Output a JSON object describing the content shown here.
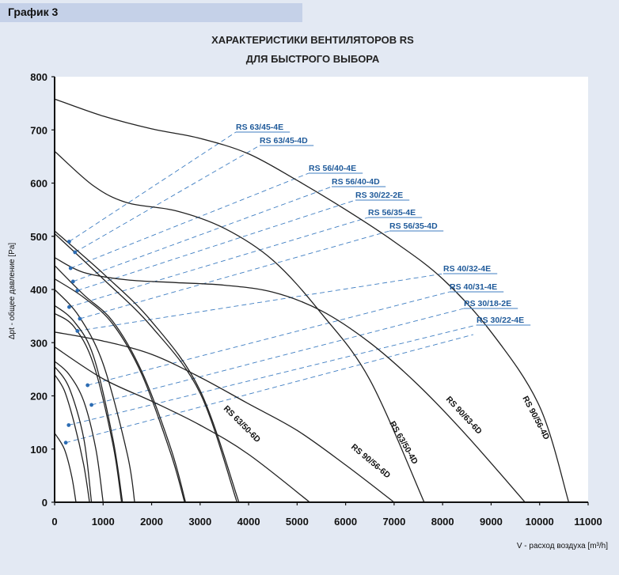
{
  "header": {
    "label": "График 3"
  },
  "chart_data": {
    "type": "line",
    "title": [
      "ХАРАКТЕРИСТИКИ ВЕНТИЛЯТОРОВ RS",
      "ДЛЯ БЫСТРОГО ВЫБОРА"
    ],
    "xlabel": "V - расход воздуха  [m³/h]",
    "ylabel": "Δpt - общее давление [Pa]",
    "xlim": [
      0,
      11000
    ],
    "ylim": [
      0,
      800
    ],
    "xticks": [
      0,
      1000,
      2000,
      3000,
      4000,
      5000,
      6000,
      7000,
      8000,
      9000,
      10000,
      11000
    ],
    "yticks": [
      0,
      100,
      200,
      300,
      400,
      500,
      600,
      700,
      800
    ],
    "series": [
      {
        "name": "RS 90/56-4D",
        "labeled": true,
        "x": [
          0,
          1000,
          2000,
          3000,
          4000,
          5000,
          6000,
          7000,
          8000,
          9000,
          10000,
          10600
        ],
        "y": [
          758,
          726,
          702,
          684,
          655,
          605,
          550,
          490,
          420,
          320,
          180,
          0
        ]
      },
      {
        "name": "RS 90/63-6D",
        "labeled": true,
        "x": [
          0,
          600,
          1500,
          2500,
          3500,
          4500,
          5500,
          6500,
          7500,
          8500,
          9700
        ],
        "y": [
          460,
          432,
          418,
          413,
          408,
          395,
          360,
          300,
          220,
          125,
          0
        ]
      },
      {
        "name": "RS 63/50-4D",
        "labeled": true,
        "x": [
          0,
          800,
          1500,
          2500,
          3500,
          4500,
          5500,
          6500,
          7620
        ],
        "y": [
          660,
          595,
          563,
          548,
          515,
          455,
          355,
          230,
          0
        ]
      },
      {
        "name": "RS 90/56-6D",
        "labeled": true,
        "x": [
          0,
          1000,
          2000,
          3000,
          4000,
          5000,
          6000,
          7000
        ],
        "y": [
          320,
          303,
          278,
          235,
          185,
          135,
          70,
          0
        ]
      },
      {
        "name": "RS 63/50-6D",
        "labeled": true,
        "x": [
          0,
          1000,
          2000,
          3000,
          4000,
          5260
        ],
        "y": [
          292,
          232,
          190,
          145,
          90,
          0
        ]
      },
      {
        "name": "RS 63/45-4E",
        "labeled": false,
        "x": [
          0,
          1000,
          2000,
          3000,
          3800
        ],
        "y": [
          510,
          430,
          340,
          210,
          0
        ]
      },
      {
        "name": "RS 63/45-4D",
        "labeled": false,
        "x": [
          0,
          1000,
          2000,
          3000,
          3760
        ],
        "y": [
          505,
          420,
          330,
          205,
          0
        ]
      },
      {
        "name": "RS 56/40-4E",
        "labeled": false,
        "x": [
          0,
          600,
          1200,
          1800,
          2400,
          2700
        ],
        "y": [
          445,
          390,
          340,
          245,
          100,
          0
        ]
      },
      {
        "name": "RS 56/40-4D",
        "labeled": false,
        "x": [
          0,
          600,
          1200,
          1800,
          2400,
          2680
        ],
        "y": [
          420,
          385,
          335,
          240,
          90,
          0
        ]
      },
      {
        "name": "RS 30/22-2E",
        "labeled": false,
        "x": [
          0,
          500,
          1000,
          1500,
          1650
        ],
        "y": [
          400,
          350,
          260,
          90,
          0
        ]
      },
      {
        "name": "RS 56/35-4E",
        "labeled": false,
        "x": [
          0,
          400,
          800,
          1200,
          1400
        ],
        "y": [
          370,
          340,
          275,
          120,
          0
        ]
      },
      {
        "name": "RS 56/35-4D",
        "labeled": false,
        "x": [
          0,
          400,
          800,
          1200,
          1380
        ],
        "y": [
          355,
          330,
          260,
          110,
          0
        ]
      },
      {
        "name": "RS 40/32-4E",
        "labeled": false,
        "x": [
          0,
          300,
          600,
          850,
          1000
        ],
        "y": [
          265,
          240,
          190,
          100,
          0
        ]
      },
      {
        "name": "RS 40/31-4E",
        "labeled": false,
        "x": [
          0,
          300,
          600,
          760
        ],
        "y": [
          255,
          215,
          120,
          0
        ]
      },
      {
        "name": "RS 30/18-2E",
        "labeled": false,
        "x": [
          0,
          200,
          400,
          600,
          720
        ],
        "y": [
          240,
          210,
          150,
          70,
          0
        ]
      },
      {
        "name": "RS 30/22-4E",
        "labeled": false,
        "x": [
          0,
          200,
          350,
          440
        ],
        "y": [
          130,
          100,
          50,
          0
        ]
      }
    ],
    "selection_lines": [
      {
        "label": "RS 63/45-4E",
        "x": 300,
        "y": 490
      },
      {
        "label": "RS 63/45-4D",
        "x": 420,
        "y": 470
      },
      {
        "label": "RS 56/40-4E",
        "x": 330,
        "y": 440
      },
      {
        "label": "RS 56/40-4D",
        "x": 380,
        "y": 415
      },
      {
        "label": "RS 30/22-2E",
        "x": 470,
        "y": 398
      },
      {
        "label": "RS 56/35-4E",
        "x": 300,
        "y": 367
      },
      {
        "label": "RS 56/35-4D",
        "x": 520,
        "y": 345
      },
      {
        "label": "RS 40/32-4E",
        "x": 470,
        "y": 322
      },
      {
        "label": "RS 40/31-4E",
        "x": 680,
        "y": 220
      },
      {
        "label": "RS 30/18-2E",
        "x": 760,
        "y": 183
      },
      {
        "label": "RS 30/22-4E",
        "x": 290,
        "y": 145
      },
      {
        "label": "",
        "x": 230,
        "y": 112
      }
    ]
  },
  "colors": {
    "curve": "#222222",
    "dashed": "#3f7ec2",
    "marker": "#2c6cb3",
    "label": "#1f5a9a"
  }
}
